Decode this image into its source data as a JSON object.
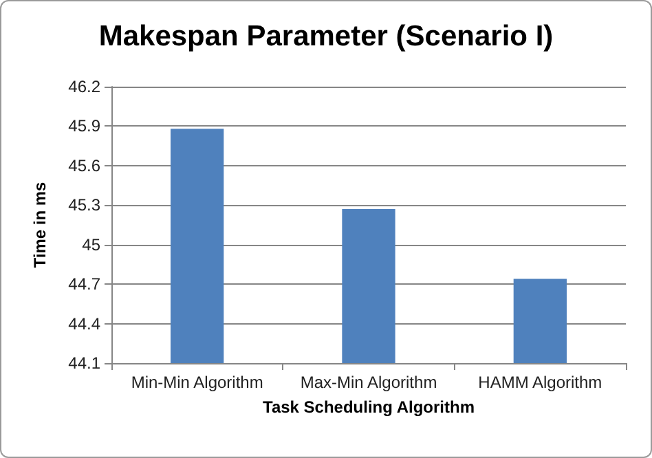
{
  "chart_data": {
    "type": "bar",
    "title": "Makespan Parameter (Scenario I)",
    "xlabel": "Task Scheduling Algorithm",
    "ylabel": "Time in ms",
    "categories": [
      "Min-Min Algorithm",
      "Max-Min Algorithm",
      "HAMM Algorithm"
    ],
    "values": [
      45.88,
      45.27,
      44.74
    ],
    "color": "#4f81bd",
    "ylim": [
      44.1,
      46.2
    ],
    "yticks": [
      44.1,
      44.4,
      44.7,
      45,
      45.3,
      45.6,
      45.9,
      46.2
    ],
    "grid": "y"
  }
}
